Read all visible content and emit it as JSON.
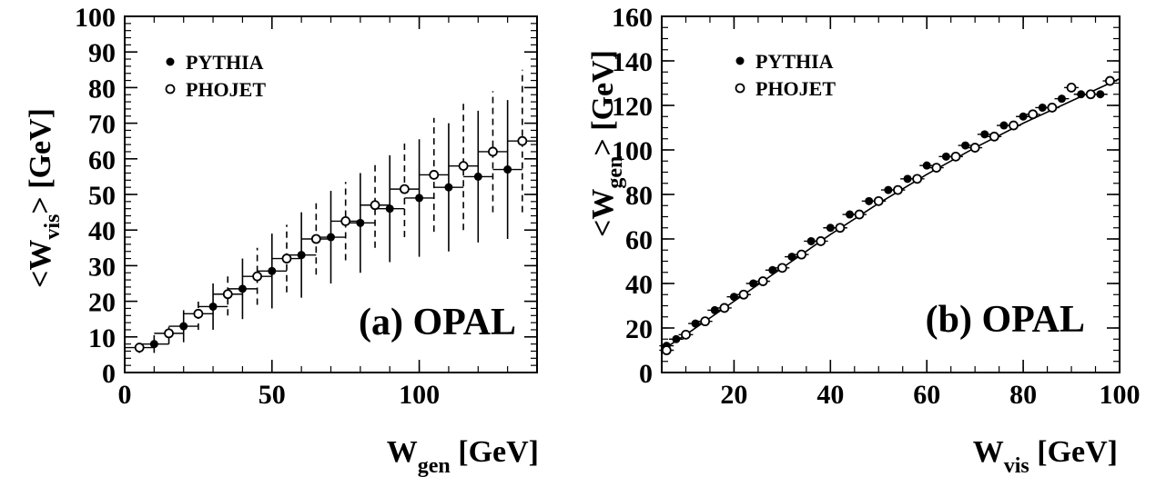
{
  "chart_data": [
    {
      "type": "scatter",
      "panel_label": "(a) OPAL",
      "xlabel": {
        "main": "W",
        "sub": "gen",
        "unit": " [GeV]"
      },
      "ylabel": {
        "open": "<W",
        "sub": "vis",
        "close": "> [GeV]"
      },
      "xlim": [
        0,
        140
      ],
      "ylim": [
        0,
        100
      ],
      "x_ticks": [
        0,
        50,
        100
      ],
      "y_ticks": [
        0,
        10,
        20,
        30,
        40,
        50,
        60,
        70,
        80,
        90,
        100
      ],
      "legend": {
        "position": "top-left",
        "entries": [
          "PYTHIA",
          "PHOJET"
        ]
      },
      "series": [
        {
          "name": "PYTHIA",
          "marker": "filled",
          "error_style": "solid",
          "x_halfwidth": 5,
          "x": [
            10,
            20,
            30,
            40,
            50,
            60,
            70,
            80,
            90,
            100,
            110,
            120,
            130
          ],
          "y": [
            8,
            13,
            18.5,
            23.5,
            28.5,
            33,
            38,
            42,
            46,
            49,
            52,
            55,
            57
          ],
          "y_err": [
            2.5,
            4.5,
            6.5,
            8.5,
            10.5,
            12,
            13,
            14,
            15,
            16.5,
            18,
            18.5,
            19.5
          ]
        },
        {
          "name": "PHOJET",
          "marker": "open",
          "error_style": "dashed",
          "x_halfwidth": 5,
          "x": [
            5,
            15,
            25,
            35,
            45,
            55,
            65,
            75,
            85,
            95,
            105,
            115,
            125,
            135
          ],
          "y": [
            7,
            11,
            16.5,
            22,
            27,
            32,
            37.5,
            42.5,
            47,
            51.5,
            55.5,
            58,
            62,
            65
          ],
          "y_err": [
            1.5,
            3,
            4.5,
            6,
            8,
            9.5,
            10,
            11,
            12,
            13.5,
            16,
            18,
            17,
            20
          ]
        }
      ]
    },
    {
      "type": "scatter",
      "panel_label": "(b) OPAL",
      "xlabel": {
        "main": "W",
        "sub": "vis",
        "unit": " [GeV]"
      },
      "ylabel": {
        "open": "<W",
        "sub": "gen",
        "close": "> [GeV]"
      },
      "xlim": [
        5,
        100
      ],
      "ylim": [
        0,
        160
      ],
      "x_ticks": [
        20,
        40,
        60,
        80,
        100
      ],
      "y_ticks": [
        0,
        20,
        40,
        60,
        80,
        100,
        120,
        140,
        160
      ],
      "legend": {
        "position": "top-left",
        "entries": [
          "PYTHIA",
          "PHOJET"
        ]
      },
      "fit_curve": {
        "x": [
          5,
          10,
          20,
          30,
          40,
          50,
          60,
          70,
          80,
          90,
          100
        ],
        "y": [
          10,
          17,
          32,
          47,
          62,
          76,
          89,
          101,
          112,
          122,
          132
        ]
      },
      "series": [
        {
          "name": "PYTHIA",
          "marker": "filled",
          "x_halfwidth": 1.5,
          "x": [
            6,
            8,
            12,
            16,
            20,
            24,
            28,
            32,
            36,
            40,
            44,
            48,
            52,
            56,
            60,
            64,
            68,
            72,
            76,
            80,
            84,
            88,
            92,
            96
          ],
          "y": [
            12,
            15,
            22,
            28,
            34,
            40,
            46,
            52,
            59,
            65,
            71,
            77,
            82,
            87,
            93,
            97,
            102,
            107,
            111,
            115,
            119,
            123,
            125,
            125
          ]
        },
        {
          "name": "PHOJET",
          "marker": "open",
          "x_halfwidth": 1.5,
          "x": [
            6,
            10,
            14,
            18,
            22,
            26,
            30,
            34,
            38,
            42,
            46,
            50,
            54,
            58,
            62,
            66,
            70,
            74,
            78,
            82,
            86,
            90,
            94,
            98
          ],
          "y": [
            10,
            17,
            23,
            29,
            35,
            41,
            47,
            53,
            59,
            65,
            71,
            77,
            82,
            87,
            92,
            97,
            101,
            106,
            111,
            116,
            119,
            128,
            125,
            131
          ]
        }
      ]
    }
  ]
}
